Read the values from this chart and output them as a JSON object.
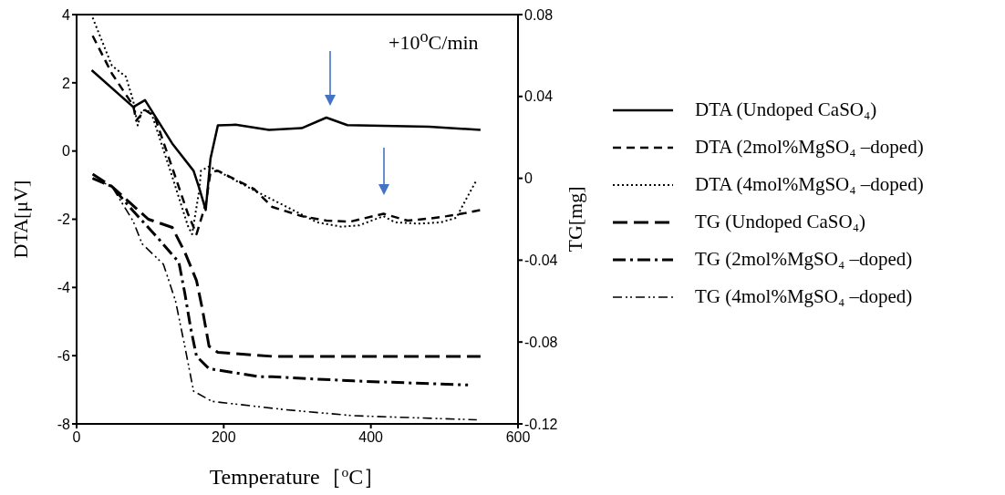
{
  "chart_data": {
    "type": "line",
    "xlabel": "Temperature［$^{o}$C］",
    "ylabel": "DTA[μV]",
    "y2label": "TG[mg]",
    "annotations": [
      "+10$^{o}$C/min"
    ],
    "xlim": [
      0,
      600
    ],
    "xticks": [
      0,
      200,
      400,
      600
    ],
    "ylim": [
      -8,
      4
    ],
    "yticks": [
      -8,
      -6,
      -4,
      -2,
      0,
      2,
      4
    ],
    "y2lim": [
      -0.12,
      0.08
    ],
    "y2ticks": [
      -0.12,
      -0.08,
      -0.04,
      0,
      0.04,
      0.08
    ],
    "grid": false,
    "legend": "right",
    "marker": "none",
    "series": [
      {
        "name": "DTA (Undoped CaSO₄)",
        "color": "#000000",
        "line_style": "solid",
        "x": [
          20.5,
          77,
          93,
          130,
          159,
          167,
          175.5,
          182,
          192,
          216,
          261.5,
          306,
          339.5,
          368,
          479,
          549
        ],
        "values": [
          2.37,
          1.29,
          1.49,
          0.22,
          -0.58,
          -1.11,
          -1.73,
          -0.22,
          0.75,
          0.77,
          0.62,
          0.67,
          0.98,
          0.76,
          0.71,
          0.62
        ]
      },
      {
        "name": "DTA (2mol%MgSO₄ –doped)",
        "color": "#000000",
        "line_style": "dashed",
        "x": [
          21.8,
          48,
          77,
          81,
          93,
          106,
          130,
          151,
          163,
          175.5,
          182,
          192,
          241,
          266,
          306,
          339.5,
          372,
          417,
          450,
          479,
          503,
          528,
          549
        ],
        "values": [
          3.38,
          2.27,
          1.33,
          0.89,
          1.2,
          1.02,
          -0.49,
          -1.82,
          -2.44,
          -1.55,
          -0.62,
          -0.58,
          -1.11,
          -1.64,
          -1.91,
          -2.04,
          -2.07,
          -1.84,
          -2.04,
          -1.98,
          -1.91,
          -1.82,
          -1.73
        ]
      },
      {
        "name": "DTA (4mol%MgSO₄ –doped)",
        "color": "#000000",
        "line_style": "dotted",
        "x": [
          21.8,
          48,
          67,
          77,
          83,
          89,
          101,
          130,
          151,
          157,
          167,
          169,
          180,
          241,
          327,
          360,
          384,
          417,
          433,
          466,
          495,
          516,
          528,
          544
        ],
        "values": [
          3.91,
          2.5,
          2.18,
          1.47,
          0.75,
          1.2,
          1.16,
          -0.75,
          -2.18,
          -2.44,
          -1.11,
          -0.58,
          -0.45,
          -1.15,
          -2.09,
          -2.22,
          -2.18,
          -1.91,
          -2.09,
          -2.13,
          -2.09,
          -1.96,
          -1.47,
          -0.84
        ]
      },
      {
        "name": "TG (Undoped CaSO₄)",
        "color": "#000000",
        "line_style": "longdash",
        "axis": "y2",
        "x": [
          21.8,
          48,
          97.5,
          130,
          147,
          163,
          171,
          180,
          192,
          266,
          549
        ],
        "values": [
          0.002,
          -0.004,
          -0.02,
          -0.024,
          -0.036,
          -0.05,
          -0.064,
          -0.082,
          -0.085,
          -0.087,
          -0.087
        ]
      },
      {
        "name": "TG (2mol%MgSO₄ –doped)",
        "color": "#000000",
        "line_style": "dashdot",
        "axis": "y2",
        "x": [
          21.8,
          48,
          77,
          110,
          139,
          147,
          155,
          163,
          180,
          249,
          266,
          376,
          532
        ],
        "values": [
          0,
          -0.004,
          -0.016,
          -0.029,
          -0.041,
          -0.056,
          -0.073,
          -0.087,
          -0.093,
          -0.097,
          -0.097,
          -0.099,
          -0.101
        ]
      },
      {
        "name": "TG (4mol%MgSO₄ –doped)",
        "color": "#000000",
        "line_style": "dashdotdot",
        "axis": "y2",
        "x": [
          21.8,
          48,
          77,
          89,
          118,
          134.5,
          147,
          159,
          184,
          282,
          376,
          544
        ],
        "values": [
          0,
          -0.004,
          -0.021,
          -0.032,
          -0.042,
          -0.06,
          -0.082,
          -0.104,
          -0.109,
          -0.113,
          -0.116,
          -0.118
        ]
      }
    ]
  }
}
